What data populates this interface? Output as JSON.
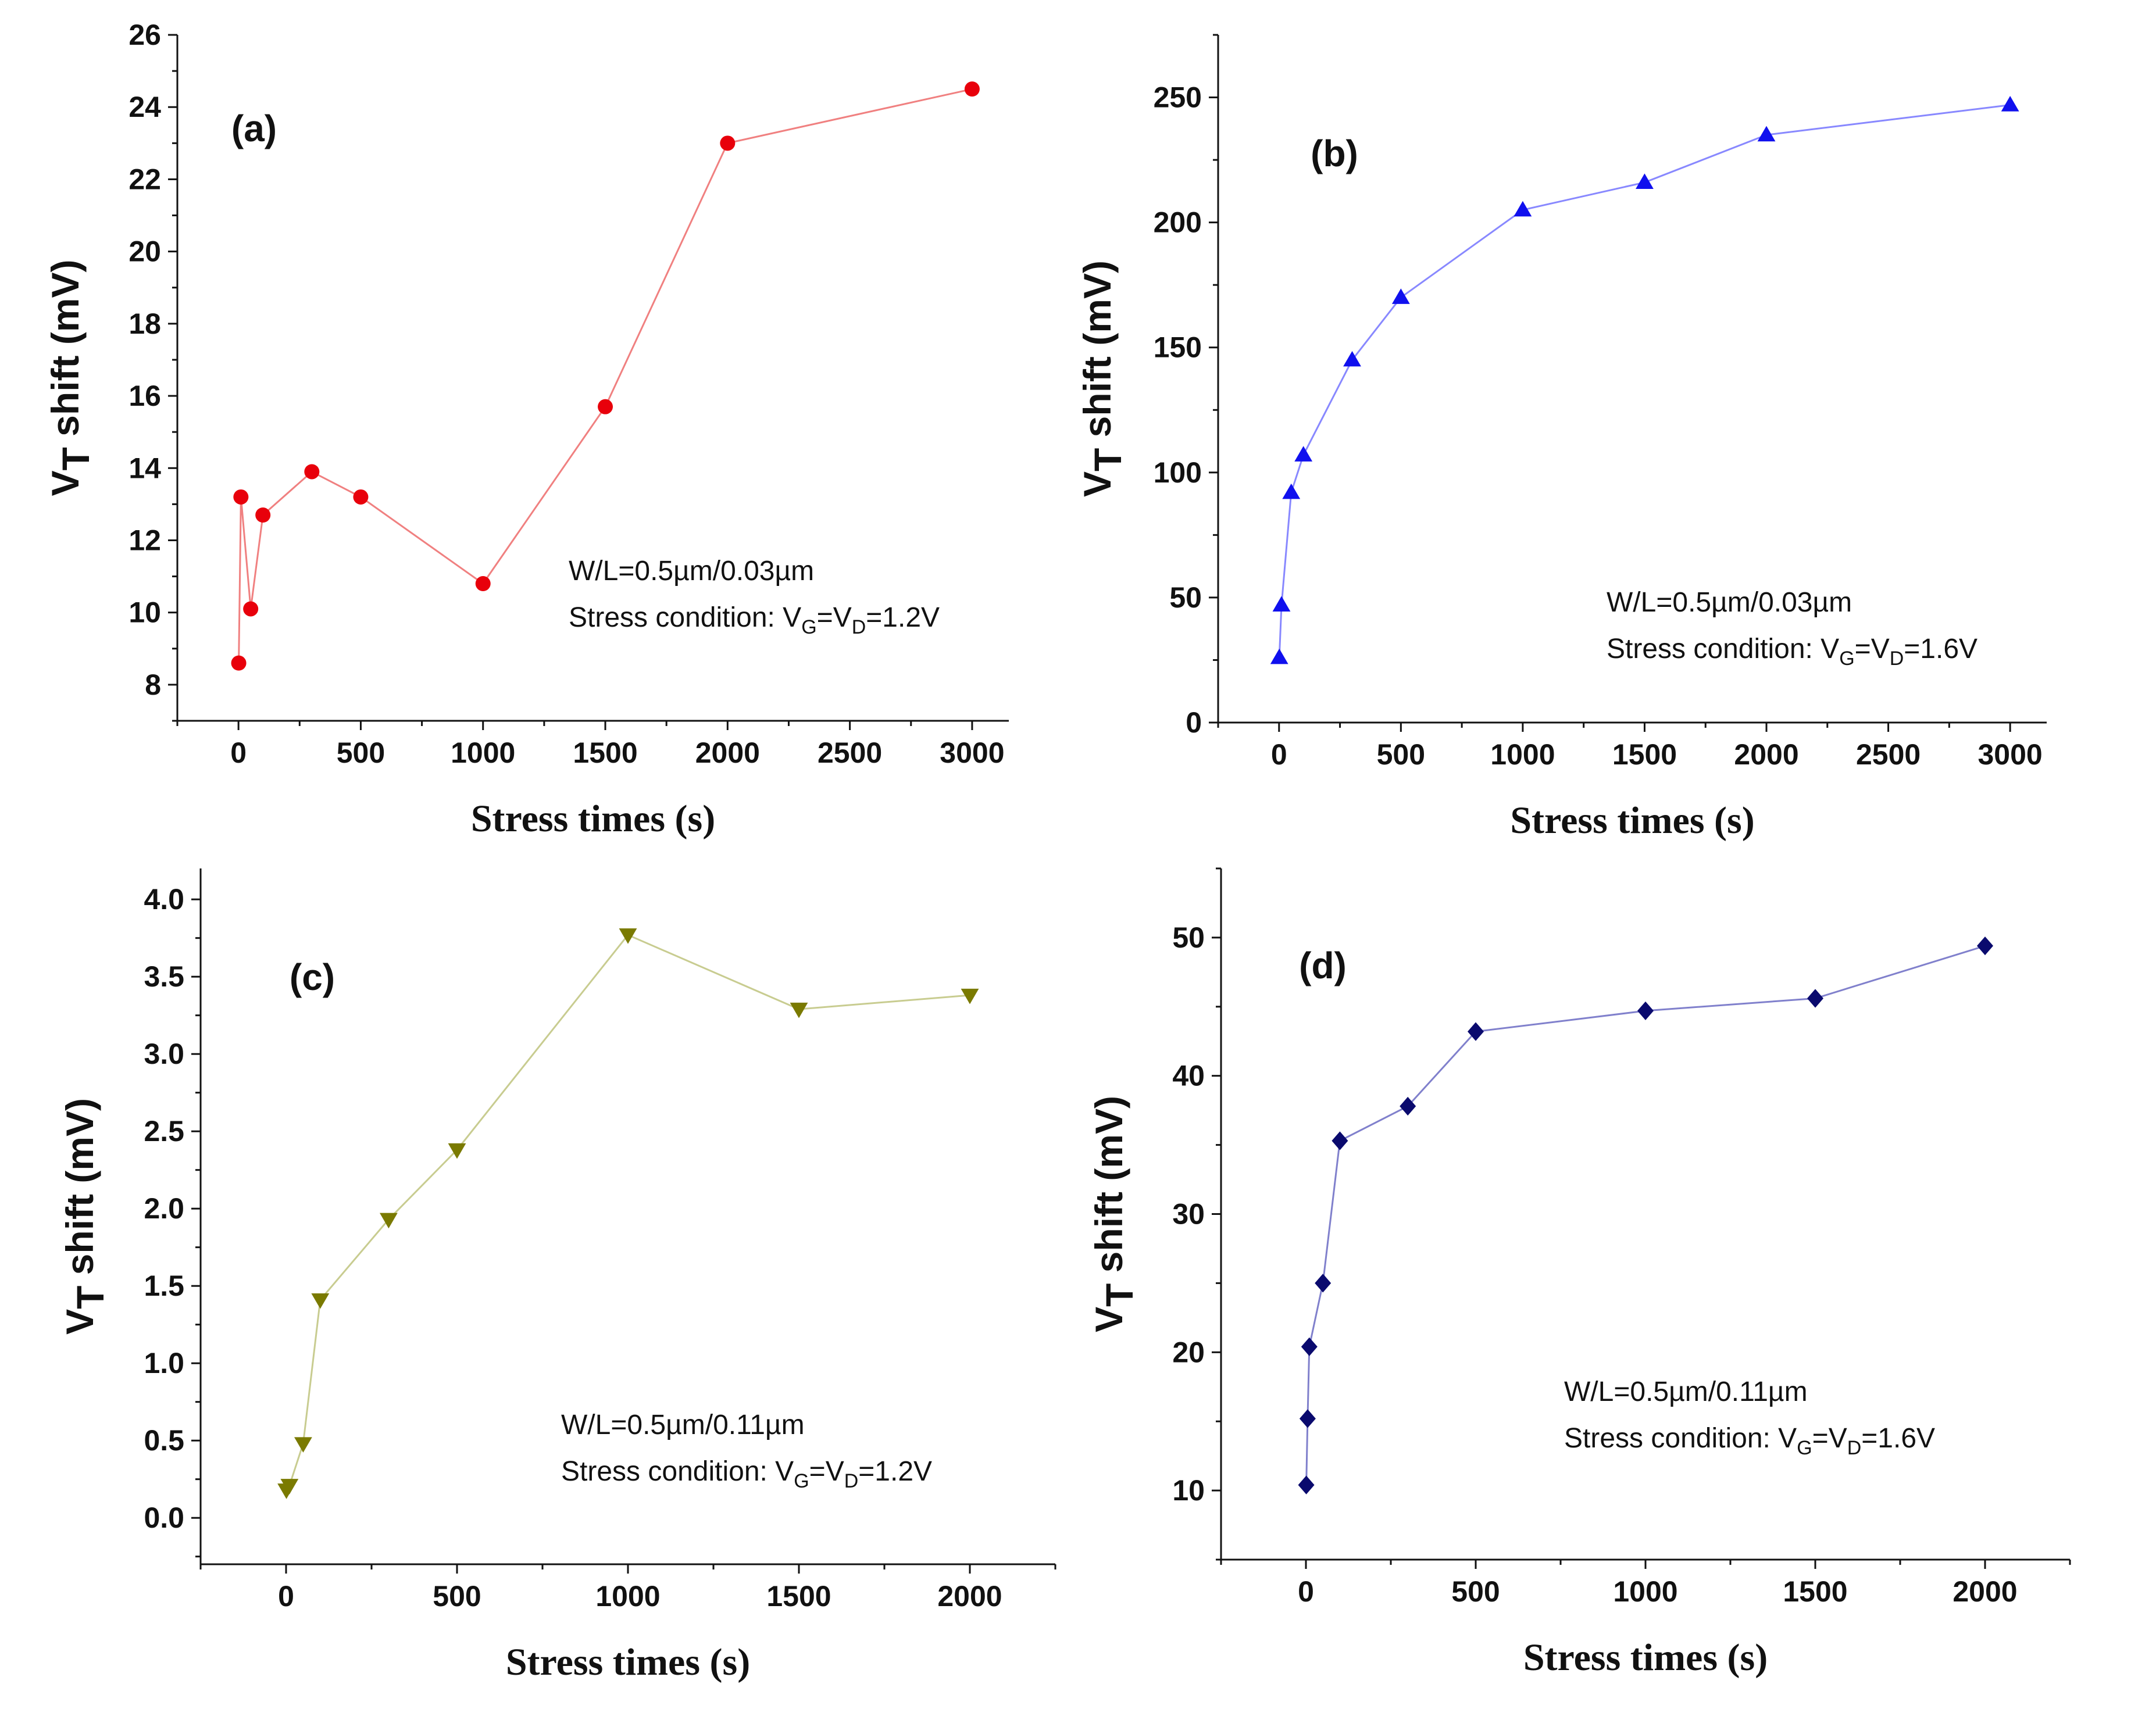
{
  "chart_data": [
    {
      "type": "line",
      "panel_label": "(a)",
      "title": "",
      "xlabel": "Stress times (s)",
      "ylabel": {
        "main": "V",
        "sub": "T",
        "rest": " shift (mV)"
      },
      "xlim": [
        -250,
        3150
      ],
      "ylim": [
        7,
        26
      ],
      "xticks": [
        0,
        500,
        1000,
        1500,
        2000,
        2500,
        3000
      ],
      "yticks": [
        8,
        10,
        12,
        14,
        16,
        18,
        20,
        22,
        24,
        26
      ],
      "grid": false,
      "series": [
        {
          "name": "W/L=0.5µm/0.03µm, VG=VD=1.2V",
          "marker": "circle",
          "line_color": "#f08080",
          "marker_color": "#e8000b",
          "x": [
            1,
            10,
            50,
            100,
            300,
            500,
            1000,
            1500,
            2000,
            3000
          ],
          "y": [
            8.6,
            13.2,
            10.1,
            12.7,
            13.9,
            13.2,
            10.8,
            15.7,
            23.0,
            24.5
          ]
        }
      ],
      "annotation": {
        "line1": "W/L=0.5µm/0.03µm",
        "line2_prefix": "Stress condition: V",
        "sub1": "G",
        "mid": "=V",
        "sub2": "D",
        "line2_suffix": "=1.2V"
      }
    },
    {
      "type": "line",
      "panel_label": "(b)",
      "title": "",
      "xlabel": "Stress times (s)",
      "ylabel": {
        "main": "V",
        "sub": "T",
        "rest": " shift (mV)"
      },
      "xlim": [
        -250,
        3150
      ],
      "ylim": [
        0,
        275
      ],
      "xticks": [
        0,
        500,
        1000,
        1500,
        2000,
        2500,
        3000
      ],
      "yticks": [
        0,
        50,
        100,
        150,
        200,
        250
      ],
      "grid": false,
      "series": [
        {
          "name": "W/L=0.5µm/0.03µm, VG=VD=1.6V",
          "marker": "triangle-up",
          "line_color": "#8888ff",
          "marker_color": "#1010ee",
          "x": [
            1,
            10,
            50,
            100,
            300,
            500,
            1000,
            1500,
            2000,
            3000
          ],
          "y": [
            26,
            47,
            92,
            107,
            145,
            170,
            205,
            216,
            235,
            247
          ]
        }
      ],
      "annotation": {
        "line1": "W/L=0.5µm/0.03µm",
        "line2_prefix": "Stress condition: V",
        "sub1": "G",
        "mid": "=V",
        "sub2": "D",
        "line2_suffix": "=1.6V"
      }
    },
    {
      "type": "line",
      "panel_label": "(c)",
      "title": "",
      "xlabel": "Stress times (s)",
      "ylabel": {
        "main": "V",
        "sub": "T",
        "rest": " shift (mV)"
      },
      "xlim": [
        -250,
        2250
      ],
      "ylim": [
        -0.3,
        4.2
      ],
      "xticks": [
        0,
        500,
        1000,
        1500,
        2000
      ],
      "yticks": [
        0.0,
        0.5,
        1.0,
        1.5,
        2.0,
        2.5,
        3.0,
        3.5,
        4.0
      ],
      "ytick_labels": [
        "0.0",
        "0.5",
        "1.0",
        "1.5",
        "2.0",
        "2.5",
        "3.0",
        "3.5",
        "4.0"
      ],
      "grid": false,
      "series": [
        {
          "name": "W/L=0.5µm/0.11µm, VG=VD=1.2V",
          "marker": "triangle-down",
          "line_color": "#c8cc90",
          "marker_color": "#7a7a00",
          "x": [
            1,
            10,
            50,
            100,
            300,
            500,
            1000,
            1500,
            2000
          ],
          "y": [
            0.18,
            0.21,
            0.48,
            1.41,
            1.93,
            2.38,
            3.77,
            3.29,
            3.38
          ]
        }
      ],
      "annotation": {
        "line1": "W/L=0.5µm/0.11µm",
        "line2_prefix": "Stress condition: V",
        "sub1": "G",
        "mid": "=V",
        "sub2": "D",
        "line2_suffix": "=1.2V"
      }
    },
    {
      "type": "line",
      "panel_label": "(d)",
      "title": "",
      "xlabel": "Stress times (s)",
      "ylabel": {
        "main": "V",
        "sub": "T",
        "rest": " shift (mV)"
      },
      "xlim": [
        -250,
        2250
      ],
      "ylim": [
        5,
        55
      ],
      "xticks": [
        0,
        500,
        1000,
        1500,
        2000
      ],
      "yticks": [
        10,
        20,
        30,
        40,
        50
      ],
      "grid": false,
      "series": [
        {
          "name": "W/L=0.5µm/0.11µm, VG=VD=1.6V",
          "marker": "diamond",
          "line_color": "#8080cc",
          "marker_color": "#0a0a6e",
          "x": [
            1,
            5,
            10,
            50,
            100,
            300,
            500,
            1000,
            1500,
            2000
          ],
          "y": [
            10.4,
            15.2,
            20.4,
            25.0,
            35.3,
            37.8,
            43.2,
            44.7,
            45.6,
            49.4
          ]
        }
      ],
      "annotation": {
        "line1": "W/L=0.5µm/0.11µm",
        "line2_prefix": "Stress condition: V",
        "sub1": "G",
        "mid": "=V",
        "sub2": "D",
        "line2_suffix": "=1.6V"
      }
    }
  ]
}
